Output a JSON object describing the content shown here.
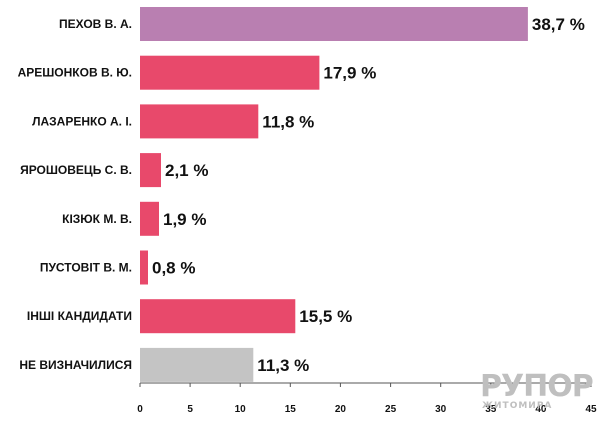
{
  "chart_data": {
    "type": "bar",
    "orientation": "horizontal",
    "categories": [
      "ПЕХОВ В. А.",
      "АРЕШОНКОВ В. Ю.",
      "ЛАЗАРЕНКО А. І.",
      "ЯРОШОВЕЦЬ С. В.",
      "КІЗЮК М. В.",
      "ПУСТОВІТ В. М.",
      "ІНШІ КАНДИДАТИ",
      "НЕ ВИЗНАЧИЛИСЯ"
    ],
    "values": [
      38.7,
      17.9,
      11.8,
      2.1,
      1.9,
      0.8,
      15.5,
      11.3
    ],
    "value_labels": [
      "38,7 %",
      "17,9 %",
      "11,8 %",
      "2,1 %",
      "1,9 %",
      "0,8 %",
      "15,5 %",
      "11,3 %"
    ],
    "bar_colors": [
      "#b97fb1",
      "#e8496b",
      "#e8496b",
      "#e8496b",
      "#e8496b",
      "#e8496b",
      "#e8496b",
      "#c4c4c4"
    ],
    "xlim": [
      0,
      45
    ],
    "x_ticks": [
      "0",
      "5",
      "10",
      "15",
      "20",
      "25",
      "30",
      "35",
      "40",
      "45"
    ],
    "grid": false,
    "title": "",
    "xlabel": "",
    "ylabel": ""
  },
  "watermark": {
    "line1": "РУПОР",
    "line2": "ЖИТОМИРА"
  }
}
